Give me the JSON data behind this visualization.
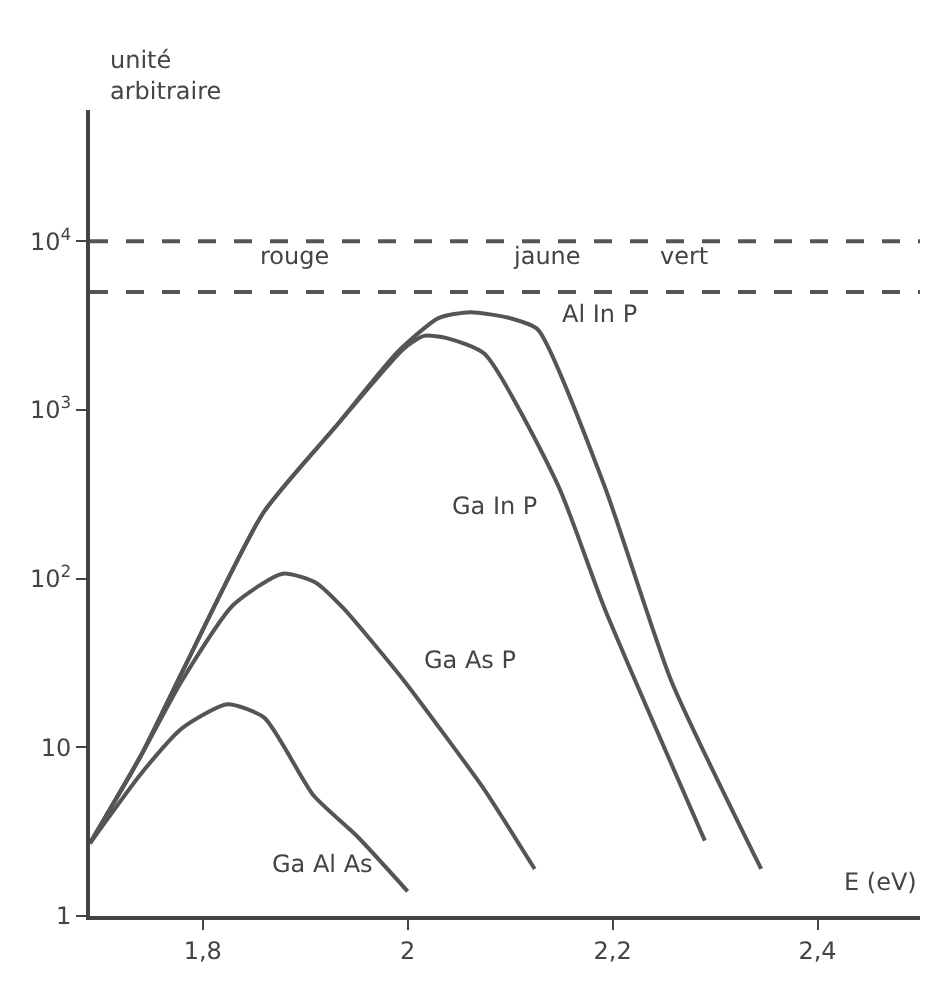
{
  "chart_data": {
    "type": "line",
    "xlabel": "E (eV)",
    "ylabel": "unité\narbitraire",
    "log": "y",
    "legend": false,
    "marker": "none",
    "line_style": "solid",
    "xlim": [
      1.69,
      2.5
    ],
    "xticks": [
      {
        "value": 1.8,
        "label": "1,8"
      },
      {
        "value": 2,
        "label": "2"
      },
      {
        "value": 2.2,
        "label": "2,2"
      },
      {
        "value": 2.4,
        "label": "2,4"
      }
    ],
    "ylim": [
      1,
      60000
    ],
    "yticks": [
      1,
      10,
      {
        "value": 100,
        "label": "10$^{2}$"
      },
      {
        "value": 1000,
        "label": "10$^{3}$"
      },
      {
        "value": 10000,
        "label": "10$^{4}$"
      }
    ],
    "series": [
      {
        "name": "Ga Al As",
        "color": "#555555",
        "x": [
          1.69,
          1.74,
          1.78,
          1.824,
          1.86,
          1.908,
          1.95,
          2.0
        ],
        "values": [
          2.7,
          7,
          13,
          18,
          15,
          5.2,
          3,
          1.4
        ]
      },
      {
        "name": "Ga As P",
        "color": "#555555",
        "x": [
          1.69,
          1.74,
          1.78,
          1.83,
          1.878,
          1.91,
          1.937,
          1.996,
          2.04,
          2.075,
          2.124
        ],
        "values": [
          2.7,
          9,
          25,
          70,
          107,
          95,
          67,
          25,
          11,
          5.6,
          1.9
        ]
      },
      {
        "name": "Ga In P",
        "color": "#555555",
        "x": [
          1.69,
          1.74,
          1.78,
          1.859,
          1.93,
          1.996,
          2.016,
          2.04,
          2.075,
          2.147,
          2.192,
          2.29
        ],
        "values": [
          2.7,
          9,
          28,
          245,
          800,
          2300,
          2750,
          2650,
          2150,
          355,
          67,
          2.8
        ]
      },
      {
        "name": "Al In P",
        "color": "#555555",
        "x": [
          1.69,
          1.74,
          1.78,
          1.859,
          1.93,
          1.99,
          2.03,
          2.061,
          2.1,
          2.127,
          2.192,
          2.257,
          2.345
        ],
        "values": [
          2.7,
          9,
          28,
          245,
          800,
          2200,
          3500,
          3800,
          3500,
          3000,
          355,
          25,
          1.9
        ]
      }
    ],
    "ref_lines": [
      {
        "axis": "y",
        "value": 10000,
        "color": "#555555",
        "line_style": "dashed"
      },
      {
        "axis": "y",
        "value": 5000,
        "color": "#555555",
        "line_style": "dashed"
      }
    ],
    "annotations": [
      "rouge",
      "jaune",
      "vert"
    ]
  }
}
